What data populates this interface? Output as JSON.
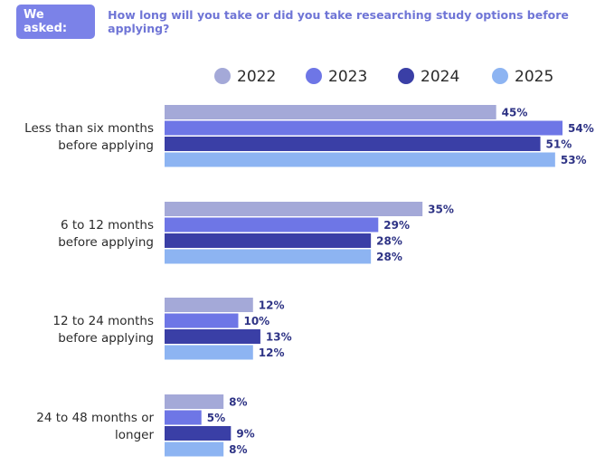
{
  "header": {
    "badge": "We asked:",
    "question": "How long will you take or did you take researching study options before applying?"
  },
  "chart_data": {
    "type": "bar",
    "orientation": "horizontal",
    "categories": [
      [
        "Less than six months",
        "before applying"
      ],
      [
        "6 to 12 months",
        "before applying"
      ],
      [
        "12 to 24 months",
        "before applying"
      ],
      [
        "24 to 48 months or",
        "longer"
      ]
    ],
    "series": [
      {
        "name": "2022",
        "color": "#a4a9d8",
        "values": [
          45,
          35,
          12,
          8
        ]
      },
      {
        "name": "2023",
        "color": "#6e76e6",
        "values": [
          54,
          29,
          10,
          5
        ]
      },
      {
        "name": "2024",
        "color": "#3a3fa6",
        "values": [
          51,
          28,
          13,
          9
        ]
      },
      {
        "name": "2025",
        "color": "#8db4f2",
        "values": [
          53,
          28,
          12,
          8
        ]
      }
    ],
    "value_suffix": "%",
    "xlim": [
      0,
      54
    ],
    "legend_position": "top",
    "grid": false
  }
}
